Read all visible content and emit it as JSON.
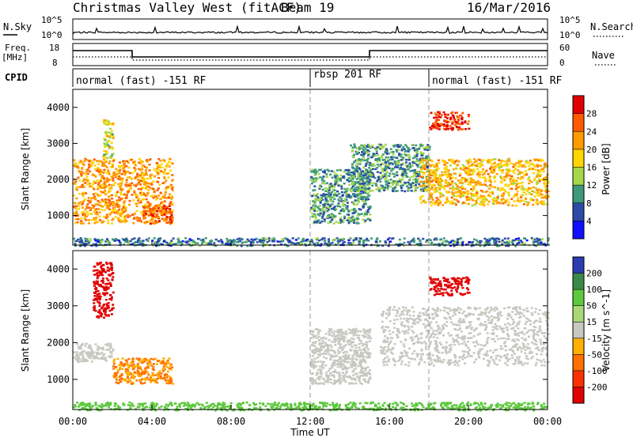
{
  "header": {
    "station": "Christmas Valley West (fitACF)",
    "beam": "Beam 19",
    "date": "16/Mar/2016"
  },
  "noise_panel": {
    "left_label": "N.Sky",
    "right_label": "N.Search",
    "left_ticks": [
      "10^5",
      "10^0"
    ],
    "right_ticks": [
      "10^5",
      "10^0"
    ]
  },
  "freq_panel": {
    "left_label_1": "Freq.",
    "left_label_2": "[MHz]",
    "right_label": "Nave",
    "left_ticks": [
      "18",
      "8"
    ],
    "right_ticks": [
      "60",
      "0"
    ]
  },
  "cpid": {
    "label": "CPID",
    "segments": [
      "normal (fast) -151 RF",
      "rbsp 201 RF",
      "normal (fast) -151 RF"
    ],
    "boundaries_hours": [
      12,
      18
    ]
  },
  "x_axis": {
    "label": "Time UT",
    "ticks": [
      "00:00",
      "04:00",
      "08:00",
      "12:00",
      "16:00",
      "20:00",
      "00:00"
    ]
  },
  "chart_data": [
    {
      "type": "heatmap",
      "title": "Power",
      "ylabel": "Slant Range [km]",
      "yticks": [
        1000,
        2000,
        3000,
        4000
      ],
      "ylim": [
        180,
        4500
      ],
      "xlim_hours": [
        0,
        24
      ],
      "colorbar": {
        "label": "Power [dB]",
        "ticks": [
          "28",
          "24",
          "20",
          "16",
          "12",
          "8",
          "4"
        ],
        "colors": [
          "#e00000",
          "#ff5a00",
          "#ff9a00",
          "#ffd600",
          "#a4d84a",
          "#3c9a7a",
          "#2c4aa6",
          "#1010ff"
        ]
      },
      "regions": [
        {
          "x": [
            0.0,
            5.0
          ],
          "y": [
            800,
            2600
          ],
          "value": 22
        },
        {
          "x": [
            1.5,
            2.0
          ],
          "y": [
            2600,
            3700
          ],
          "value": 16
        },
        {
          "x": [
            3.5,
            5.0
          ],
          "y": [
            800,
            1300
          ],
          "value": 26
        },
        {
          "x": [
            12.0,
            15.0
          ],
          "y": [
            800,
            2300
          ],
          "value": 10
        },
        {
          "x": [
            14.0,
            18.0
          ],
          "y": [
            1700,
            3000
          ],
          "value": 10
        },
        {
          "x": [
            17.5,
            24.0
          ],
          "y": [
            1300,
            2600
          ],
          "value": 20
        },
        {
          "x": [
            18.0,
            20.0
          ],
          "y": [
            3400,
            3900
          ],
          "value": 28
        },
        {
          "x": [
            0.0,
            24.0
          ],
          "y": [
            180,
            400
          ],
          "value": 8
        }
      ]
    },
    {
      "type": "heatmap",
      "title": "Velocity",
      "ylabel": "Slant Range [km]",
      "yticks": [
        1000,
        2000,
        3000,
        4000
      ],
      "ylim": [
        180,
        4500
      ],
      "xlim_hours": [
        0,
        24
      ],
      "colorbar": {
        "label": "Velocity [m s^-1]",
        "ticks": [
          "200",
          "100",
          "50",
          "15",
          "-15",
          "-50",
          "-100",
          "-200"
        ],
        "colors": [
          "#2c3cb0",
          "#3c8a4a",
          "#5cc83c",
          "#a8d878",
          "#c8c8c0",
          "#ffb000",
          "#ff7000",
          "#ff3000",
          "#e00000"
        ]
      },
      "regions": [
        {
          "x": [
            0.0,
            2.0
          ],
          "y": [
            1500,
            2000
          ],
          "value": 0
        },
        {
          "x": [
            1.0,
            2.0
          ],
          "y": [
            2700,
            4200
          ],
          "value": -200
        },
        {
          "x": [
            2.0,
            5.0
          ],
          "y": [
            900,
            1600
          ],
          "value": -50
        },
        {
          "x": [
            12.0,
            15.0
          ],
          "y": [
            900,
            2400
          ],
          "value": 0
        },
        {
          "x": [
            15.5,
            24.0
          ],
          "y": [
            1400,
            3000
          ],
          "value": 0
        },
        {
          "x": [
            18.0,
            20.0
          ],
          "y": [
            3300,
            3800
          ],
          "value": -200
        },
        {
          "x": [
            0.0,
            24.0
          ],
          "y": [
            180,
            400
          ],
          "value": 50
        }
      ]
    }
  ]
}
